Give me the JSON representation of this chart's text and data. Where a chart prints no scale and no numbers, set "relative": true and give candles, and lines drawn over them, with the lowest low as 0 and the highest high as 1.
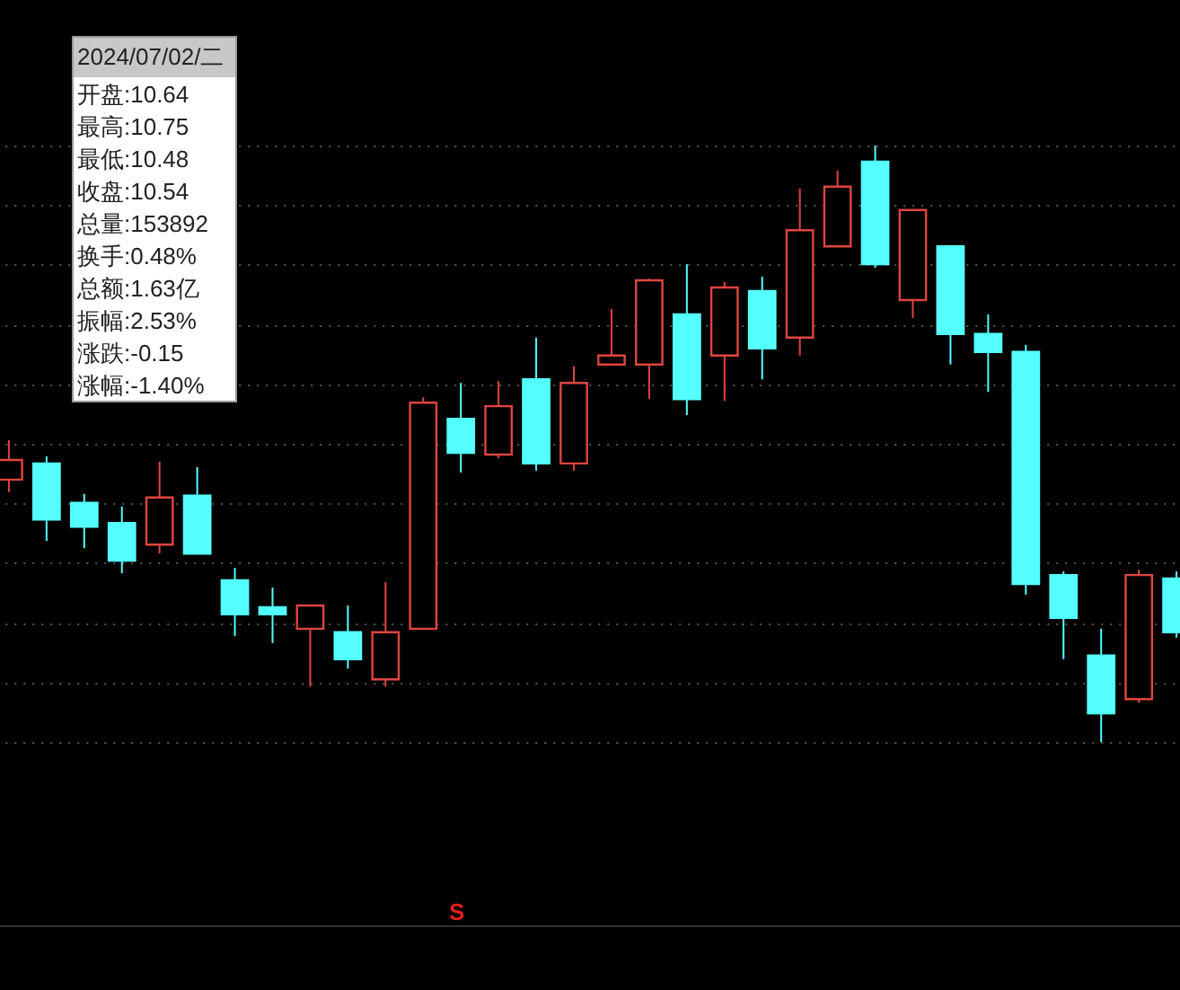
{
  "chart_data": {
    "type": "candlestick",
    "relative": true,
    "grid": "y",
    "categories": [
      null,
      null,
      null,
      null,
      null,
      null,
      null,
      null,
      null,
      null,
      null,
      null,
      null,
      null,
      null,
      null,
      null,
      null,
      null,
      null,
      null,
      null,
      null,
      null,
      null,
      null,
      null,
      null,
      null,
      null,
      null,
      null
    ],
    "ohlc": [
      [
        0.44,
        0.506,
        0.419,
        0.473
      ],
      [
        0.467,
        0.479,
        0.337,
        0.373
      ],
      [
        0.401,
        0.416,
        0.325,
        0.361
      ],
      [
        0.367,
        0.395,
        0.283,
        0.304
      ],
      [
        0.331,
        0.47,
        0.316,
        0.41
      ],
      [
        0.413,
        0.461,
        0.316,
        0.316
      ],
      [
        0.271,
        0.292,
        0.178,
        0.214
      ],
      [
        0.226,
        0.259,
        0.166,
        0.214
      ],
      [
        0.19,
        0.229,
        0.093,
        0.229
      ],
      [
        0.184,
        0.229,
        0.123,
        0.139
      ],
      [
        0.105,
        0.268,
        0.093,
        0.184
      ],
      [
        0.19,
        0.578,
        0.19,
        0.569
      ],
      [
        0.542,
        0.602,
        0.452,
        0.485
      ],
      [
        0.482,
        0.605,
        0.476,
        0.563
      ],
      [
        0.608,
        0.678,
        0.455,
        0.467
      ],
      [
        0.467,
        0.63,
        0.455,
        0.602
      ],
      [
        0.633,
        0.726,
        0.633,
        0.648
      ],
      [
        0.633,
        0.777,
        0.575,
        0.774
      ],
      [
        0.717,
        0.801,
        0.548,
        0.575
      ],
      [
        0.648,
        0.771,
        0.572,
        0.762
      ],
      [
        0.756,
        0.78,
        0.608,
        0.66
      ],
      [
        0.678,
        0.928,
        0.648,
        0.858
      ],
      [
        0.831,
        0.958,
        0.831,
        0.931
      ],
      [
        0.973,
        1,
        0.795,
        0.801
      ],
      [
        0.741,
        0.892,
        0.711,
        0.892
      ],
      [
        0.831,
        0.831,
        0.633,
        0.684
      ],
      [
        0.684,
        0.717,
        0.587,
        0.654
      ],
      [
        0.654,
        0.666,
        0.247,
        0.265
      ],
      [
        0.28,
        0.286,
        0.139,
        0.208
      ],
      [
        0.145,
        0.19,
        0,
        0.048
      ],
      [
        0.072,
        0.289,
        0.066,
        0.28
      ],
      [
        0.274,
        0.286,
        0.175,
        0.184
      ]
    ],
    "colors": [
      "#e0453f",
      "#54ffff",
      "#54ffff",
      "#54ffff",
      "#e0453f",
      "#54ffff",
      "#54ffff",
      "#54ffff",
      "#e0453f",
      "#54ffff",
      "#e0453f",
      "#e0453f",
      "#54ffff",
      "#e0453f",
      "#54ffff",
      "#e0453f",
      "#e0453f",
      "#e0453f",
      "#54ffff",
      "#e0453f",
      "#54ffff",
      "#e0453f",
      "#e0453f",
      "#54ffff",
      "#e0453f",
      "#54ffff",
      "#54ffff",
      "#54ffff",
      "#54ffff",
      "#54ffff",
      "#e0453f",
      "#54ffff"
    ],
    "annotations": [
      "2024/07/02/二",
      "开盘:10.64",
      "最高:10.75",
      "最低:10.48",
      "收盘:10.54",
      "总量:153892",
      "换手:0.48%",
      "总额:1.63亿",
      "振幅:2.53%",
      "涨跌:-0.15",
      "涨幅:-1.40%",
      "S"
    ]
  }
}
